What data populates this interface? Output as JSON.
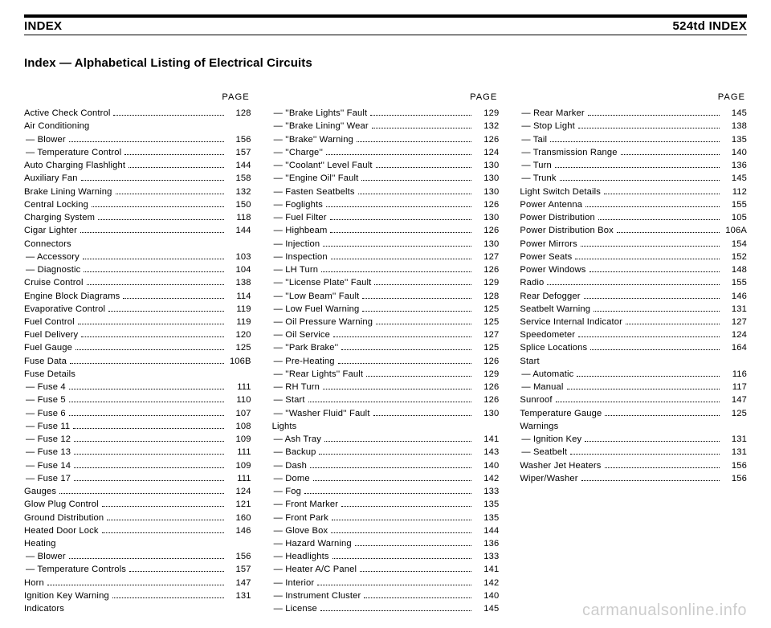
{
  "header": {
    "left": "INDEX",
    "right": "524td INDEX"
  },
  "title": "Index — Alphabetical Listing of Electrical Circuits",
  "page_label": "PAGE",
  "watermark": "carmanualsonline.info",
  "col1": [
    {
      "label": "Active Check Control",
      "page": "128"
    },
    {
      "label": "Air Conditioning",
      "page": null
    },
    {
      "label": "— Blower",
      "page": "156",
      "sub": true
    },
    {
      "label": "— Temperature Control",
      "page": "157",
      "sub": true
    },
    {
      "label": "Auto Charging Flashlight",
      "page": "144"
    },
    {
      "label": "Auxiliary Fan",
      "page": "158"
    },
    {
      "label": "Brake Lining Warning",
      "page": "132"
    },
    {
      "label": "Central Locking",
      "page": "150"
    },
    {
      "label": "Charging System",
      "page": "118"
    },
    {
      "label": "Cigar Lighter",
      "page": "144"
    },
    {
      "label": "Connectors",
      "page": null
    },
    {
      "label": "— Accessory",
      "page": "103",
      "sub": true
    },
    {
      "label": "— Diagnostic",
      "page": "104",
      "sub": true
    },
    {
      "label": "Cruise Control",
      "page": "138"
    },
    {
      "label": "Engine Block Diagrams",
      "page": "114"
    },
    {
      "label": "Evaporative Control",
      "page": "119"
    },
    {
      "label": "Fuel Control",
      "page": "119"
    },
    {
      "label": "Fuel Delivery",
      "page": "120"
    },
    {
      "label": "Fuel Gauge",
      "page": "125"
    },
    {
      "label": "Fuse Data",
      "page": "106B"
    },
    {
      "label": "Fuse Details",
      "page": null
    },
    {
      "label": "— Fuse 4",
      "page": "111",
      "sub": true
    },
    {
      "label": "— Fuse 5",
      "page": "110",
      "sub": true
    },
    {
      "label": "— Fuse 6",
      "page": "107",
      "sub": true
    },
    {
      "label": "— Fuse 11",
      "page": "108",
      "sub": true
    },
    {
      "label": "— Fuse 12",
      "page": "109",
      "sub": true
    },
    {
      "label": "— Fuse 13",
      "page": "111",
      "sub": true
    },
    {
      "label": "— Fuse 14",
      "page": "109",
      "sub": true
    },
    {
      "label": "— Fuse 17",
      "page": "111",
      "sub": true
    },
    {
      "label": "Gauges",
      "page": "124"
    },
    {
      "label": "Glow Plug Control",
      "page": "121"
    },
    {
      "label": "Ground Distribution",
      "page": "160"
    },
    {
      "label": "Heated Door Lock",
      "page": "146"
    },
    {
      "label": "Heating",
      "page": null
    },
    {
      "label": "— Blower",
      "page": "156",
      "sub": true
    },
    {
      "label": "— Temperature Controls",
      "page": "157",
      "sub": true
    },
    {
      "label": "Horn",
      "page": "147"
    },
    {
      "label": "Ignition Key Warning",
      "page": "131"
    },
    {
      "label": "Indicators",
      "page": null
    }
  ],
  "col2": [
    {
      "label": "— ''Brake Lights'' Fault",
      "page": "129",
      "sub": true
    },
    {
      "label": "— ''Brake Lining'' Wear",
      "page": "132",
      "sub": true
    },
    {
      "label": "— ''Brake'' Warning",
      "page": "126",
      "sub": true
    },
    {
      "label": "— ''Charge''",
      "page": "124",
      "sub": true
    },
    {
      "label": "— ''Coolant'' Level Fault",
      "page": "130",
      "sub": true
    },
    {
      "label": "— ''Engine Oil'' Fault",
      "page": "130",
      "sub": true
    },
    {
      "label": "— Fasten Seatbelts",
      "page": "130",
      "sub": true
    },
    {
      "label": "— Foglights",
      "page": "126",
      "sub": true
    },
    {
      "label": "— Fuel Filter",
      "page": "130",
      "sub": true
    },
    {
      "label": "— Highbeam",
      "page": "126",
      "sub": true
    },
    {
      "label": "— Injection",
      "page": "130",
      "sub": true
    },
    {
      "label": "— Inspection",
      "page": "127",
      "sub": true
    },
    {
      "label": "— LH Turn",
      "page": "126",
      "sub": true
    },
    {
      "label": "— ''License Plate'' Fault",
      "page": "129",
      "sub": true
    },
    {
      "label": "— ''Low Beam'' Fault",
      "page": "128",
      "sub": true
    },
    {
      "label": "— Low Fuel Warning",
      "page": "125",
      "sub": true
    },
    {
      "label": "— Oil Pressure Warning",
      "page": "125",
      "sub": true
    },
    {
      "label": "— Oil Service",
      "page": "127",
      "sub": true
    },
    {
      "label": "— ''Park Brake''",
      "page": "125",
      "sub": true
    },
    {
      "label": "— Pre-Heating",
      "page": "126",
      "sub": true
    },
    {
      "label": "— ''Rear Lights'' Fault",
      "page": "129",
      "sub": true
    },
    {
      "label": "— RH Turn",
      "page": "126",
      "sub": true
    },
    {
      "label": "— Start",
      "page": "126",
      "sub": true
    },
    {
      "label": "— ''Washer Fluid'' Fault",
      "page": "130",
      "sub": true
    },
    {
      "label": "Lights",
      "page": null
    },
    {
      "label": "— Ash Tray",
      "page": "141",
      "sub": true
    },
    {
      "label": "— Backup",
      "page": "143",
      "sub": true
    },
    {
      "label": "— Dash",
      "page": "140",
      "sub": true
    },
    {
      "label": "— Dome",
      "page": "142",
      "sub": true
    },
    {
      "label": "— Fog",
      "page": "133",
      "sub": true
    },
    {
      "label": "— Front Marker",
      "page": "135",
      "sub": true
    },
    {
      "label": "— Front Park",
      "page": "135",
      "sub": true
    },
    {
      "label": "— Glove Box",
      "page": "144",
      "sub": true
    },
    {
      "label": "— Hazard Warning",
      "page": "136",
      "sub": true
    },
    {
      "label": "— Headlights",
      "page": "133",
      "sub": true
    },
    {
      "label": "— Heater A/C Panel",
      "page": "141",
      "sub": true
    },
    {
      "label": "— Interior",
      "page": "142",
      "sub": true
    },
    {
      "label": "— Instrument Cluster",
      "page": "140",
      "sub": true
    },
    {
      "label": "— License",
      "page": "145",
      "sub": true
    }
  ],
  "col3": [
    {
      "label": "— Rear Marker",
      "page": "145",
      "sub": true
    },
    {
      "label": "— Stop Light",
      "page": "138",
      "sub": true
    },
    {
      "label": "— Tail",
      "page": "135",
      "sub": true
    },
    {
      "label": "— Transmission Range",
      "page": "140",
      "sub": true
    },
    {
      "label": "— Turn",
      "page": "136",
      "sub": true
    },
    {
      "label": "— Trunk",
      "page": "145",
      "sub": true
    },
    {
      "label": "Light Switch Details",
      "page": "112"
    },
    {
      "label": "Power Antenna",
      "page": "155"
    },
    {
      "label": "Power Distribution",
      "page": "105"
    },
    {
      "label": "Power Distribution Box",
      "page": "106A"
    },
    {
      "label": "Power Mirrors",
      "page": "154"
    },
    {
      "label": "Power Seats",
      "page": "152"
    },
    {
      "label": "Power Windows",
      "page": "148"
    },
    {
      "label": "Radio",
      "page": "155"
    },
    {
      "label": "Rear Defogger",
      "page": "146"
    },
    {
      "label": "Seatbelt Warning",
      "page": "131"
    },
    {
      "label": "Service Internal Indicator",
      "page": "127"
    },
    {
      "label": "Speedometer",
      "page": "124"
    },
    {
      "label": "Splice Locations",
      "page": "164"
    },
    {
      "label": "Start",
      "page": null
    },
    {
      "label": "— Automatic",
      "page": "116",
      "sub": true
    },
    {
      "label": "— Manual",
      "page": "117",
      "sub": true
    },
    {
      "label": "Sunroof",
      "page": "147"
    },
    {
      "label": "Temperature Gauge",
      "page": "125"
    },
    {
      "label": "Warnings",
      "page": null
    },
    {
      "label": "— Ignition Key",
      "page": "131",
      "sub": true
    },
    {
      "label": "— Seatbelt",
      "page": "131",
      "sub": true
    },
    {
      "label": "Washer Jet Heaters",
      "page": "156"
    },
    {
      "label": "Wiper/Washer",
      "page": "156"
    }
  ]
}
